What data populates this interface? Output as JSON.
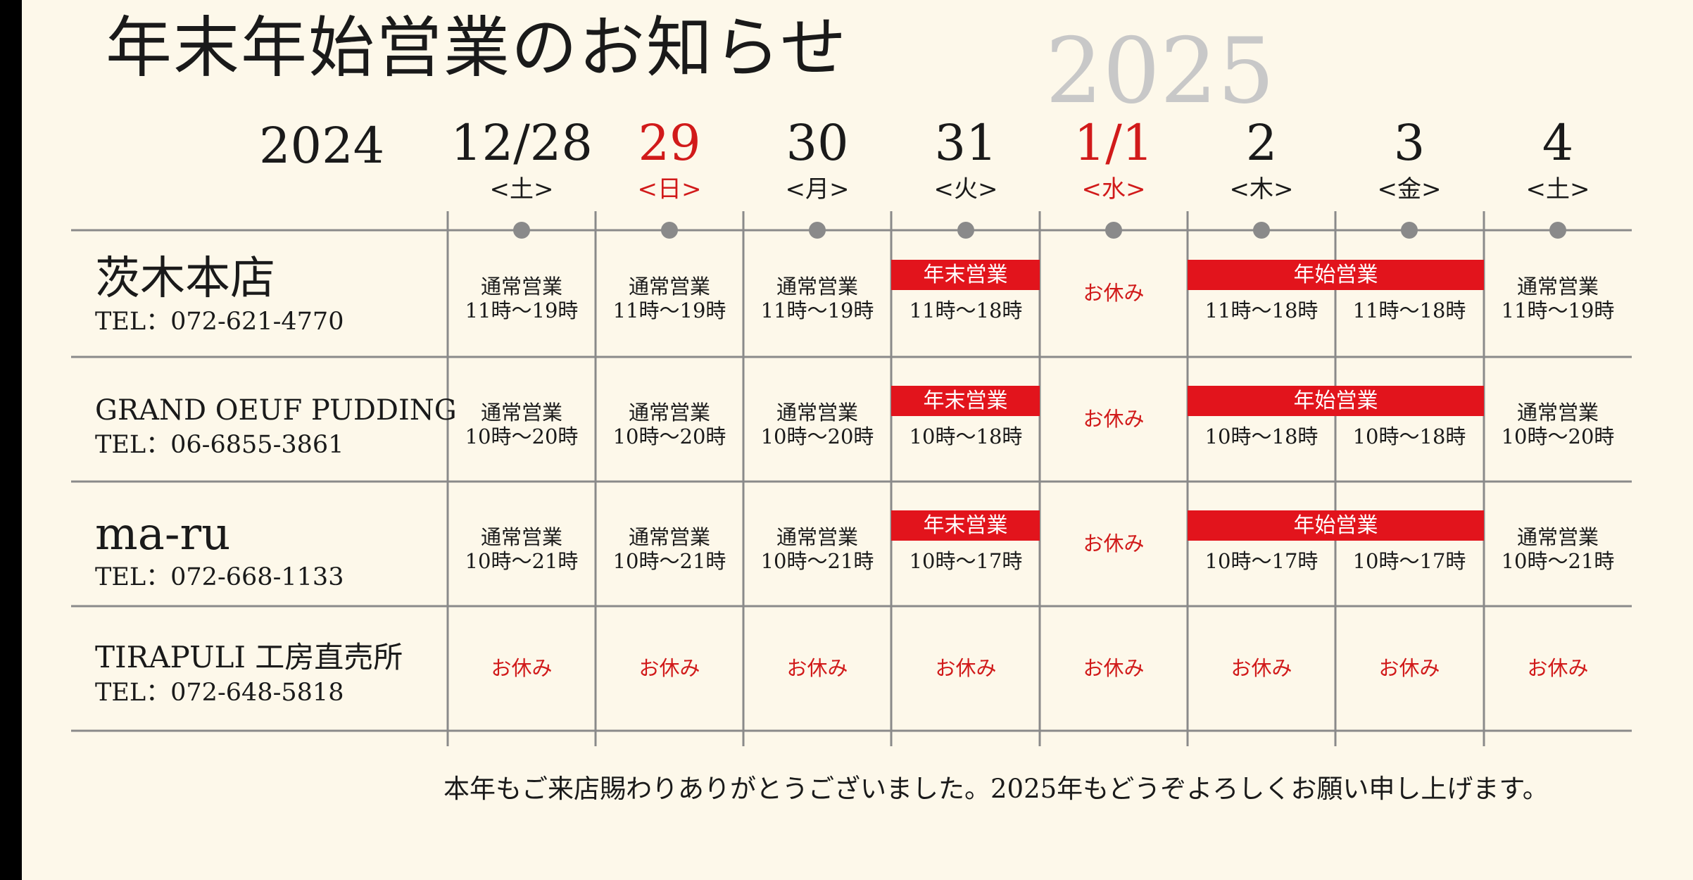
{
  "title": "年末年始営業のお知らせ",
  "year_next": "2025",
  "year_prev": "2024",
  "days": [
    {
      "date": "12/28",
      "weekday": "<土>",
      "holiday": false
    },
    {
      "date": "29",
      "weekday": "<日>",
      "holiday": true
    },
    {
      "date": "30",
      "weekday": "<月>",
      "holiday": false
    },
    {
      "date": "31",
      "weekday": "<火>",
      "holiday": false
    },
    {
      "date": "1/1",
      "weekday": "<水>",
      "holiday": true
    },
    {
      "date": "2",
      "weekday": "<木>",
      "holiday": false
    },
    {
      "date": "3",
      "weekday": "<金>",
      "holiday": false
    },
    {
      "date": "4",
      "weekday": "<土>",
      "holiday": false
    }
  ],
  "labels": {
    "normal": "通常営業",
    "year_end": "年末営業",
    "new_year": "年始営業",
    "closed": "お休み"
  },
  "stores": [
    {
      "name": "茨木本店",
      "tel": "TEL：072-621-4770",
      "cells": [
        "11時〜19時",
        "11時〜19時",
        "11時〜19時",
        "11時〜18時",
        "",
        "11時〜18時",
        "11時〜18時",
        "11時〜19時"
      ]
    },
    {
      "name": "GRAND OEUF PUDDING",
      "tel": "TEL：06-6855-3861",
      "cells": [
        "10時〜20時",
        "10時〜20時",
        "10時〜20時",
        "10時〜18時",
        "",
        "10時〜18時",
        "10時〜18時",
        "10時〜20時"
      ]
    },
    {
      "name": "ma-ru",
      "tel": "TEL：072-668-1133",
      "cells": [
        "10時〜21時",
        "10時〜21時",
        "10時〜21時",
        "10時〜17時",
        "",
        "10時〜17時",
        "10時〜17時",
        "10時〜21時"
      ]
    },
    {
      "name": "TIRAPULI 工房直売所",
      "tel": "TEL：072-648-5818",
      "cells": [
        "",
        "",
        "",
        "",
        "",
        "",
        "",
        ""
      ]
    }
  ],
  "footer": "本年もご来店賜わりありがとうございました。2025年もどうぞよろしくお願い申し上げます。",
  "colors": {
    "accent": "#e2141c",
    "holiday_text": "#d11a1a",
    "grid": "#8a8a8a",
    "background": "#fdf8ea"
  }
}
